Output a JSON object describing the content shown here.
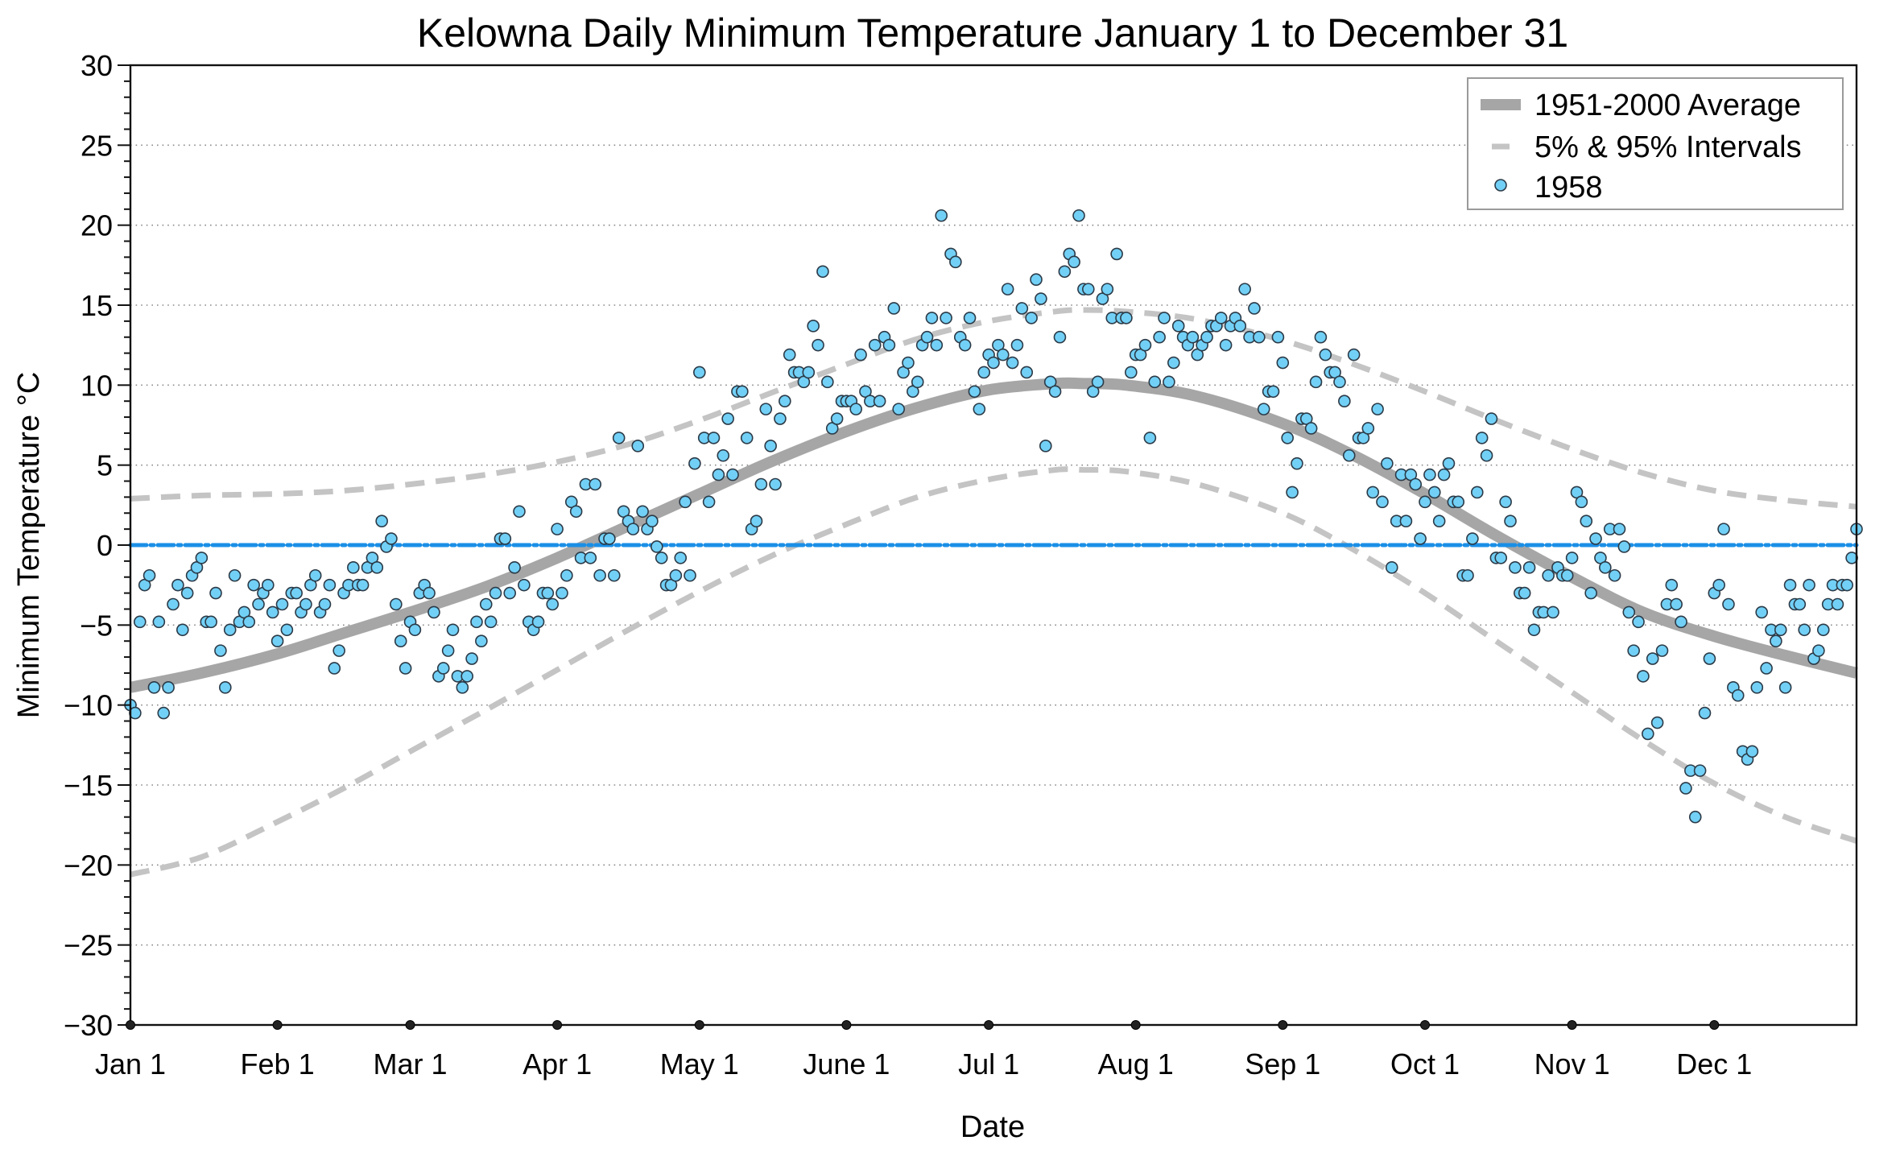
{
  "chart_data": {
    "type": "scatter",
    "title": "Kelowna Daily Minimum Temperature January 1 to December 31",
    "xlabel": "Date",
    "ylabel": "Minimum Temperature °C",
    "xlim": [
      0,
      364
    ],
    "ylim": [
      -30,
      30
    ],
    "grid": true,
    "legend_position": "top-right",
    "yticks": [
      30,
      25,
      20,
      15,
      10,
      5,
      0,
      -5,
      -10,
      -15,
      -20,
      -25,
      -30
    ],
    "ytick_labels": [
      "30",
      "25",
      "20",
      "15",
      "10",
      "5",
      "0",
      "−5",
      "−10",
      "−15",
      "−20",
      "−25",
      "−30"
    ],
    "xticks": [
      0,
      31,
      59,
      90,
      120,
      151,
      181,
      212,
      243,
      273,
      304,
      334
    ],
    "xtick_labels": [
      "Jan 1",
      "Feb 1",
      "Mar 1",
      "Apr 1",
      "May 1",
      "June 1",
      "Jul 1",
      "Aug 1",
      "Sep 1",
      "Oct 1",
      "Nov 1",
      "Dec 1"
    ],
    "reference_line": {
      "name": "zero-line",
      "y": 0,
      "color": "#1a8fe6",
      "style": "dash-dot"
    },
    "legend": [
      {
        "label": "1951-2000 Average",
        "kind": "thick-line"
      },
      {
        "label": "5% & 95% Intervals",
        "kind": "dashed-line"
      },
      {
        "label": "1958",
        "kind": "marker"
      }
    ],
    "colors": {
      "average": "#a6a6a6",
      "intervals": "#c4c4c4",
      "marker_fill": "#72d0f6",
      "marker_stroke": "#2b3a47",
      "zero_line": "#1a8fe6",
      "grid": "#8a8a8a"
    },
    "series": [
      {
        "name": "1951-2000 Average",
        "type": "line",
        "x": [
          0,
          15,
          31,
          45,
          59,
          75,
          90,
          105,
          120,
          135,
          151,
          166,
          181,
          195,
          201,
          210,
          225,
          243,
          258,
          273,
          288,
          304,
          319,
          334,
          349,
          364
        ],
        "values": [
          -8.9,
          -8.0,
          -6.8,
          -5.5,
          -4.2,
          -2.6,
          -0.8,
          1.2,
          3.2,
          5.2,
          7.1,
          8.6,
          9.7,
          10.1,
          10.1,
          10.0,
          9.3,
          7.6,
          5.6,
          3.2,
          0.6,
          -2.0,
          -4.2,
          -5.7,
          -6.9,
          -8.0
        ]
      },
      {
        "name": "95% Interval",
        "type": "line",
        "x": [
          0,
          15,
          31,
          45,
          59,
          75,
          90,
          105,
          120,
          135,
          151,
          166,
          181,
          195,
          201,
          210,
          225,
          243,
          258,
          273,
          288,
          304,
          319,
          334,
          349,
          364
        ],
        "values": [
          2.9,
          3.1,
          3.2,
          3.4,
          3.8,
          4.4,
          5.2,
          6.3,
          7.8,
          9.5,
          11.3,
          12.9,
          14.0,
          14.6,
          14.7,
          14.6,
          14.1,
          12.8,
          11.3,
          9.6,
          7.8,
          6.0,
          4.5,
          3.4,
          2.8,
          2.4
        ]
      },
      {
        "name": "5% Interval",
        "type": "line",
        "x": [
          0,
          15,
          31,
          45,
          59,
          75,
          90,
          105,
          120,
          135,
          151,
          166,
          181,
          195,
          201,
          210,
          225,
          243,
          258,
          273,
          288,
          304,
          319,
          334,
          349,
          364
        ],
        "values": [
          -20.6,
          -19.5,
          -17.3,
          -15.2,
          -12.9,
          -10.3,
          -7.8,
          -5.3,
          -2.9,
          -0.7,
          1.3,
          3.0,
          4.1,
          4.7,
          4.7,
          4.6,
          3.8,
          2.0,
          -0.3,
          -3.0,
          -6.0,
          -9.2,
          -12.2,
          -14.9,
          -17.0,
          -18.5
        ]
      },
      {
        "name": "1958",
        "type": "scatter",
        "x_start": 0,
        "values": [
          -10.0,
          -10.5,
          -4.8,
          -2.5,
          -1.9,
          -8.9,
          -4.8,
          -10.5,
          -8.9,
          -3.7,
          -2.5,
          -5.3,
          -3.0,
          -1.9,
          -1.4,
          -0.8,
          -4.8,
          -4.8,
          -3.0,
          -6.6,
          -8.9,
          -5.3,
          -1.9,
          -4.8,
          -4.2,
          -4.8,
          -2.5,
          -3.7,
          -3.0,
          -2.5,
          -4.2,
          -6.0,
          -3.7,
          -5.3,
          -3.0,
          -3.0,
          -4.2,
          -3.7,
          -2.5,
          -1.9,
          -4.2,
          -3.7,
          -2.5,
          -7.7,
          -6.6,
          -3.0,
          -2.5,
          -1.4,
          -2.5,
          -2.5,
          -1.4,
          -0.8,
          -1.4,
          1.5,
          -0.1,
          0.4,
          -3.7,
          -6.0,
          -7.7,
          -4.8,
          -5.3,
          -3.0,
          -2.5,
          -3.0,
          -4.2,
          -8.2,
          -7.7,
          -6.6,
          -5.3,
          -8.2,
          -8.9,
          -8.2,
          -7.1,
          -4.8,
          -6.0,
          -3.7,
          -4.8,
          -3.0,
          0.4,
          0.4,
          -3.0,
          -1.4,
          2.1,
          -2.5,
          -4.8,
          -5.3,
          -4.8,
          -3.0,
          -3.0,
          -3.7,
          1.0,
          -3.0,
          -1.9,
          2.7,
          2.1,
          -0.8,
          3.8,
          -0.8,
          3.8,
          -1.9,
          0.4,
          0.4,
          -1.9,
          6.7,
          2.1,
          1.5,
          1.0,
          6.2,
          2.1,
          1.0,
          1.5,
          -0.1,
          -0.8,
          -2.5,
          -2.5,
          -1.9,
          -0.8,
          2.7,
          -1.9,
          5.1,
          10.8,
          6.7,
          2.7,
          6.7,
          4.4,
          5.6,
          7.9,
          4.4,
          9.6,
          9.6,
          6.7,
          1.0,
          1.5,
          3.8,
          8.5,
          6.2,
          3.8,
          7.9,
          9.0,
          11.9,
          10.8,
          10.8,
          10.2,
          10.8,
          13.7,
          12.5,
          17.1,
          10.2,
          7.3,
          7.9,
          9.0,
          9.0,
          9.0,
          8.5,
          11.9,
          9.6,
          9.0,
          12.5,
          9.0,
          13.0,
          12.5,
          14.8,
          8.5,
          10.8,
          11.4,
          9.6,
          10.2,
          12.5,
          13.0,
          14.2,
          12.5,
          20.6,
          14.2,
          18.2,
          17.7,
          13.0,
          12.5,
          14.2,
          9.6,
          8.5,
          10.8,
          11.9,
          11.4,
          12.5,
          11.9,
          16.0,
          11.4,
          12.5,
          14.8,
          10.8,
          14.2,
          16.6,
          15.4,
          6.2,
          10.2,
          9.6,
          13.0,
          17.1,
          18.2,
          17.7,
          20.6,
          16.0,
          16.0,
          9.6,
          10.2,
          15.4,
          16.0,
          14.2,
          18.2,
          14.2,
          14.2,
          10.8,
          11.9,
          11.9,
          12.5,
          6.7,
          10.2,
          13.0,
          14.2,
          10.2,
          11.4,
          13.7,
          13.0,
          12.5,
          13.0,
          11.9,
          12.5,
          13.0,
          13.7,
          13.7,
          14.2,
          12.5,
          13.7,
          14.2,
          13.7,
          16.0,
          13.0,
          14.8,
          13.0,
          8.5,
          9.6,
          9.6,
          13.0,
          11.4,
          6.7,
          3.3,
          5.1,
          7.9,
          7.9,
          7.3,
          10.2,
          13.0,
          11.9,
          10.8,
          10.8,
          10.2,
          9.0,
          5.6,
          11.9,
          6.7,
          6.7,
          7.3,
          3.3,
          8.5,
          2.7,
          5.1,
          -1.4,
          1.5,
          4.4,
          1.5,
          4.4,
          3.8,
          0.4,
          2.7,
          4.4,
          3.3,
          1.5,
          4.4,
          5.1,
          2.7,
          2.7,
          -1.9,
          -1.9,
          0.4,
          3.3,
          6.7,
          5.6,
          7.9,
          -0.8,
          -0.8,
          2.7,
          1.5,
          -1.4,
          -3.0,
          -3.0,
          -1.4,
          -5.3,
          -4.2,
          -4.2,
          -1.9,
          -4.2,
          -1.4,
          -1.9,
          -1.9,
          -0.8,
          3.3,
          2.7,
          1.5,
          -3.0,
          0.4,
          -0.8,
          -1.4,
          1.0,
          -1.9,
          1.0,
          -0.1,
          -4.2,
          -6.6,
          -4.8,
          -8.2,
          -11.8,
          -7.1,
          -11.1,
          -6.6,
          -3.7,
          -2.5,
          -3.7,
          -4.8,
          -15.2,
          -14.1,
          -17.0,
          -14.1,
          -10.5,
          -7.1,
          -3.0,
          -2.5,
          1.0,
          -3.7,
          -8.9,
          -9.4,
          -12.9,
          -13.4,
          -12.9,
          -8.9,
          -4.2,
          -7.7,
          -5.3,
          -6.0,
          -5.3,
          -8.9,
          -2.5,
          -3.7,
          -3.7,
          -5.3,
          -2.5,
          -7.1,
          -6.6,
          -5.3,
          -3.7,
          -2.5,
          -3.7,
          -2.5,
          -2.5,
          -0.8,
          1.0
        ]
      }
    ]
  }
}
